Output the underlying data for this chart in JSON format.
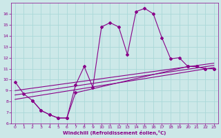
{
  "xlabel": "Windchill (Refroidissement éolien,°C)",
  "background_color": "#cce8e8",
  "grid_color": "#aad8d8",
  "line_color": "#880088",
  "xlim": [
    -0.5,
    23.5
  ],
  "ylim": [
    6,
    17
  ],
  "yticks": [
    6,
    7,
    8,
    9,
    10,
    11,
    12,
    13,
    14,
    15,
    16
  ],
  "xticks": [
    0,
    1,
    2,
    3,
    4,
    5,
    6,
    7,
    8,
    9,
    10,
    11,
    12,
    13,
    14,
    15,
    16,
    17,
    18,
    19,
    20,
    21,
    22,
    23
  ],
  "series1_x": [
    0,
    1,
    2,
    3,
    4,
    5,
    6,
    7,
    8,
    9,
    10,
    11,
    12,
    13,
    14,
    15,
    16,
    17,
    18,
    19,
    20,
    21,
    22,
    23
  ],
  "series1_y": [
    9.8,
    8.7,
    8.1,
    7.2,
    6.8,
    6.5,
    6.5,
    9.5,
    11.2,
    9.3,
    14.8,
    15.2,
    14.8,
    12.3,
    16.2,
    16.5,
    16.0,
    13.8,
    11.9,
    12.0,
    11.2,
    11.2,
    11.0,
    11.0
  ],
  "series2_x": [
    2,
    3,
    4,
    5,
    6,
    7,
    20,
    21,
    22,
    23
  ],
  "series2_y": [
    8.1,
    7.2,
    6.8,
    6.5,
    6.5,
    8.8,
    11.2,
    11.2,
    11.0,
    11.0
  ],
  "series3_x": [
    0,
    23
  ],
  "series3_y": [
    8.2,
    11.1
  ],
  "series4_x": [
    0,
    23
  ],
  "series4_y": [
    8.6,
    11.3
  ],
  "series5_x": [
    0,
    23
  ],
  "series5_y": [
    9.0,
    11.5
  ]
}
